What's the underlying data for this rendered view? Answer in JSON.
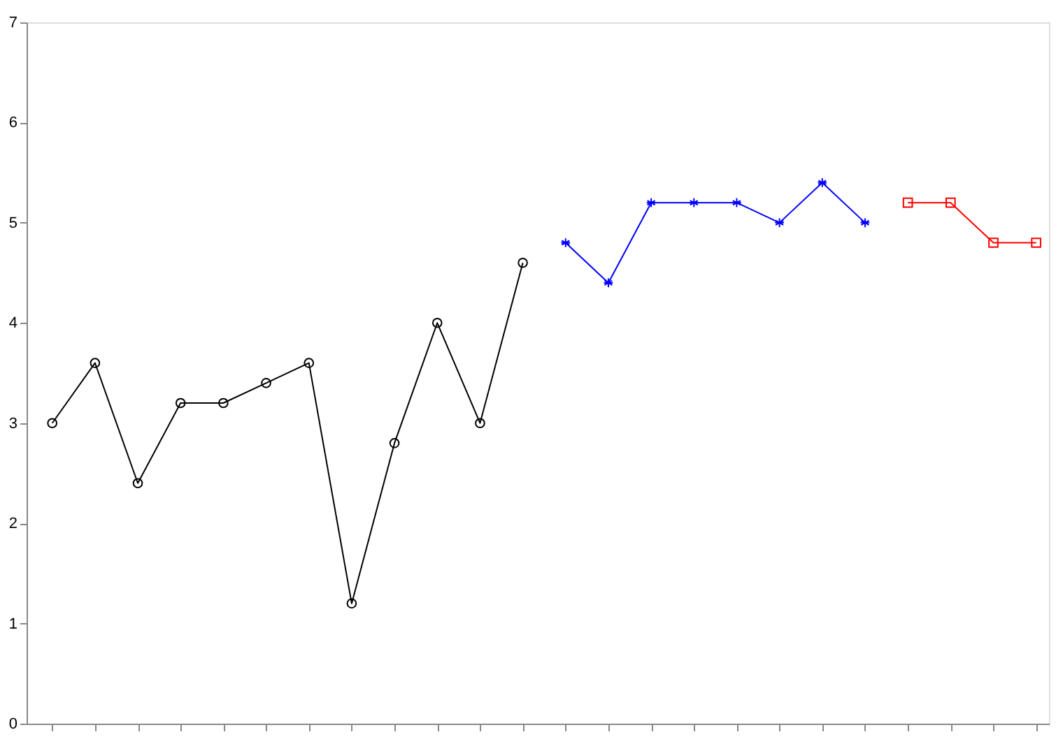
{
  "chart_data": {
    "type": "line",
    "categories": [
      null,
      null,
      null,
      null,
      null,
      null,
      null,
      null,
      null,
      null,
      null,
      null,
      null,
      null,
      null,
      null,
      null,
      null,
      null,
      null,
      null,
      null,
      null,
      null
    ],
    "series": [
      {
        "color": "#000000",
        "marker": "circle",
        "values": [
          3.0,
          3.6,
          2.4,
          3.2,
          3.2,
          3.4,
          3.6,
          1.2,
          2.8,
          4.0,
          3.0,
          4.6,
          null,
          null,
          null,
          null,
          null,
          null,
          null,
          null,
          null,
          null,
          null,
          null
        ]
      },
      {
        "color": "#0000ff",
        "marker": "cross",
        "values": [
          null,
          null,
          null,
          null,
          null,
          null,
          null,
          null,
          null,
          null,
          null,
          null,
          4.8,
          4.4,
          5.2,
          5.2,
          5.2,
          5.0,
          5.4,
          5.0,
          null,
          null,
          null,
          null
        ]
      },
      {
        "color": "#ff0000",
        "marker": "square",
        "values": [
          null,
          null,
          null,
          null,
          null,
          null,
          null,
          null,
          null,
          null,
          null,
          null,
          null,
          null,
          null,
          null,
          null,
          null,
          null,
          null,
          5.2,
          5.2,
          4.8,
          4.8
        ]
      }
    ],
    "ylim": [
      0,
      7
    ],
    "yticks": [
      0,
      1,
      2,
      3,
      4,
      5,
      6,
      7
    ],
    "grid": false,
    "tick_labels": "y",
    "line_style": "solid"
  }
}
